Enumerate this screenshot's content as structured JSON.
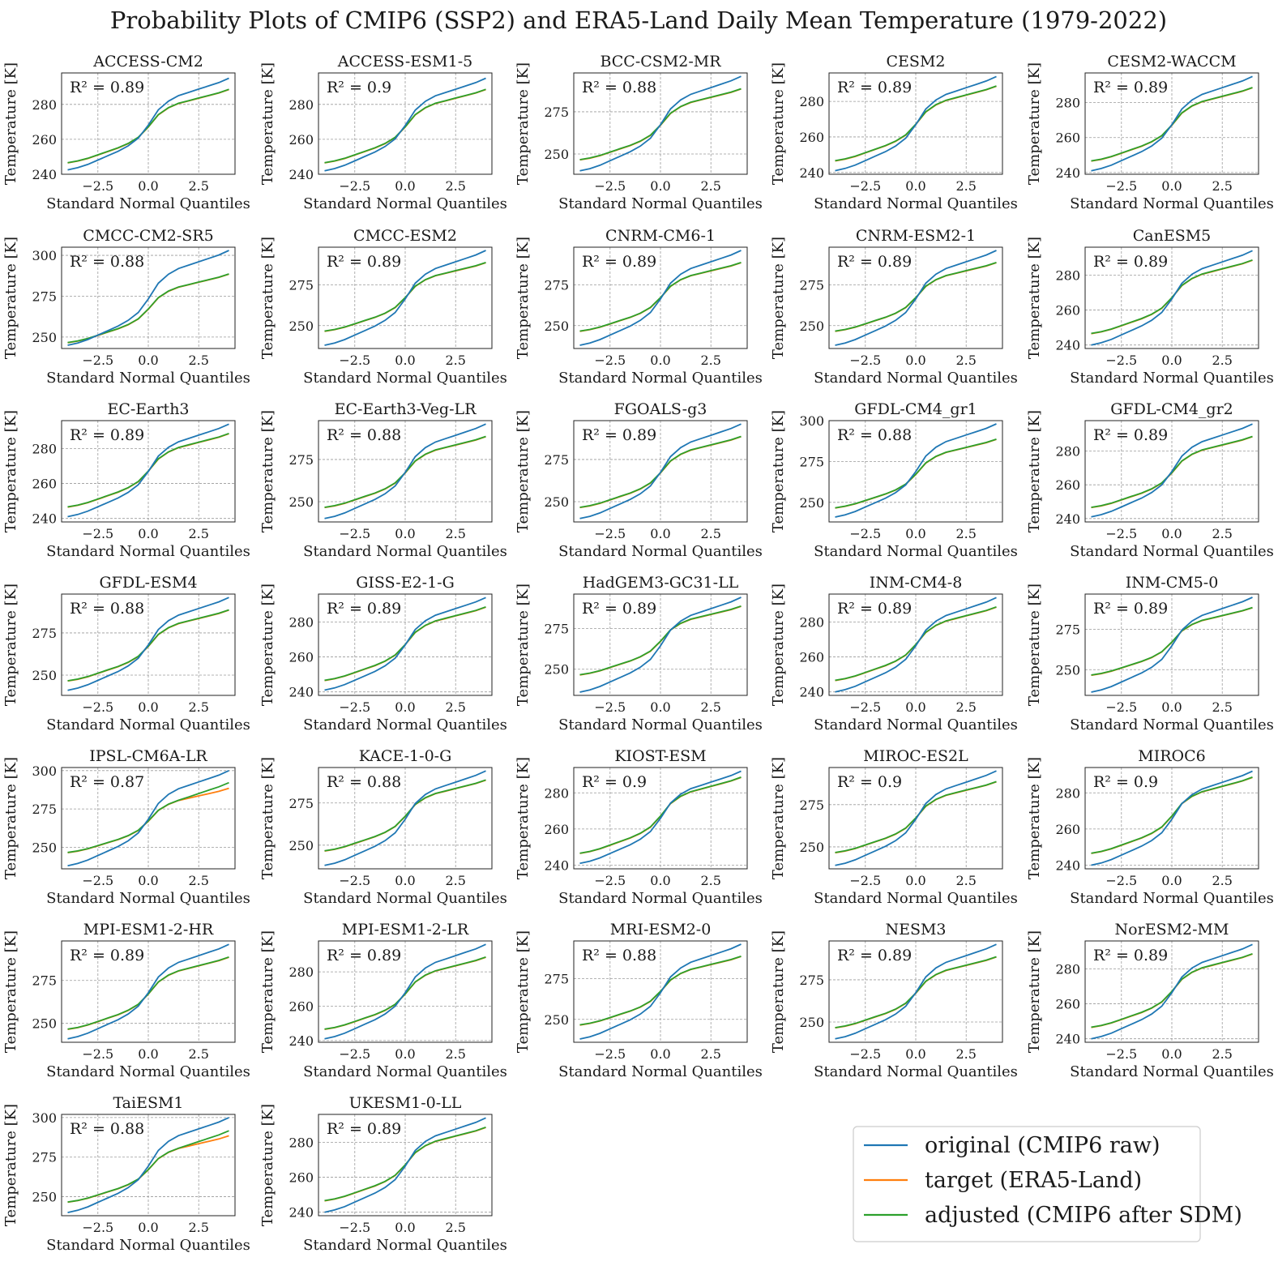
{
  "title": "Probability Plots of CMIP6 (SSP2) and ERA5-Land Daily Mean Temperature (1979-2022)",
  "colors": {
    "original": "#1f77b4",
    "target": "#ff7f0e",
    "adjusted": "#2ca02c",
    "grid": "#9a9a9a"
  },
  "legend": {
    "items": [
      {
        "key": "original",
        "label": "original (CMIP6 raw)"
      },
      {
        "key": "target",
        "label": "target (ERA5-Land)"
      },
      {
        "key": "adjusted",
        "label": "adjusted (CMIP6 after SDM)"
      }
    ]
  },
  "chart_data": {
    "type": "line",
    "xlabel": "Standard Normal Quantiles",
    "ylabel": "Temperature [K]",
    "xlim": [
      -4.3,
      4.3
    ],
    "xticks": [
      -2.5,
      0.0,
      2.5
    ],
    "xtick_labels": [
      "−2.5",
      "0.0",
      "2.5"
    ],
    "quantiles": [
      -4.0,
      -3.5,
      -3.0,
      -2.5,
      -2.0,
      -1.5,
      -1.0,
      -0.5,
      0.0,
      0.5,
      1.0,
      1.5,
      2.0,
      2.5,
      3.0,
      3.5,
      4.0
    ],
    "target_series": [
      246.5,
      247.5,
      249.0,
      251.0,
      253.0,
      255.0,
      257.5,
      261.0,
      267.0,
      274.0,
      278.0,
      280.5,
      282.0,
      283.5,
      285.0,
      286.5,
      288.5
    ],
    "r2_prefix": "R² = ",
    "panels": [
      {
        "name": "ACCESS-CM2",
        "r2": "0.89",
        "ylim": [
          240,
          298
        ],
        "yticks": [
          240,
          260,
          280
        ],
        "tmin": 242.5,
        "tmax": 295.0
      },
      {
        "name": "ACCESS-ESM1-5",
        "r2": "0.9",
        "ylim": [
          240,
          298
        ],
        "yticks": [
          240,
          260,
          280
        ],
        "tmin": 242.0,
        "tmax": 295.0
      },
      {
        "name": "BCC-CSM2-MR",
        "r2": "0.88",
        "ylim": [
          238,
          298
        ],
        "yticks": [
          250,
          275
        ],
        "tmin": 240.0,
        "tmax": 296.0
      },
      {
        "name": "CESM2",
        "r2": "0.89",
        "ylim": [
          239,
          296
        ],
        "yticks": [
          240,
          260,
          280
        ],
        "tmin": 241.0,
        "tmax": 294.0
      },
      {
        "name": "CESM2-WACCM",
        "r2": "0.89",
        "ylim": [
          239,
          297
        ],
        "yticks": [
          240,
          260,
          280
        ],
        "tmin": 241.0,
        "tmax": 295.0
      },
      {
        "name": "CMCC-CM2-SR5",
        "r2": "0.88",
        "ylim": [
          243,
          305
        ],
        "yticks": [
          250,
          275,
          300
        ],
        "tmin": 245.0,
        "tmax": 303.0
      },
      {
        "name": "CMCC-ESM2",
        "r2": "0.89",
        "ylim": [
          236,
          298
        ],
        "yticks": [
          250,
          275
        ],
        "tmin": 238.0,
        "tmax": 296.0
      },
      {
        "name": "CNRM-CM6-1",
        "r2": "0.89",
        "ylim": [
          236,
          298
        ],
        "yticks": [
          250,
          275
        ],
        "tmin": 238.0,
        "tmax": 296.0
      },
      {
        "name": "CNRM-ESM2-1",
        "r2": "0.89",
        "ylim": [
          236,
          298
        ],
        "yticks": [
          250,
          275
        ],
        "tmin": 238.0,
        "tmax": 296.0
      },
      {
        "name": "CanESM5",
        "r2": "0.89",
        "ylim": [
          238,
          296
        ],
        "yticks": [
          240,
          260,
          280
        ],
        "tmin": 240.0,
        "tmax": 294.0
      },
      {
        "name": "EC-Earth3",
        "r2": "0.89",
        "ylim": [
          238,
          296
        ],
        "yticks": [
          240,
          260,
          280
        ],
        "tmin": 241.0,
        "tmax": 294.0
      },
      {
        "name": "EC-Earth3-Veg-LR",
        "r2": "0.88",
        "ylim": [
          238,
          298
        ],
        "yticks": [
          250,
          275
        ],
        "tmin": 240.0,
        "tmax": 296.0
      },
      {
        "name": "FGOALS-g3",
        "r2": "0.89",
        "ylim": [
          238,
          298
        ],
        "yticks": [
          250,
          275
        ],
        "tmin": 240.0,
        "tmax": 296.0
      },
      {
        "name": "GFDL-CM4_gr1",
        "r2": "0.88",
        "ylim": [
          238,
          300
        ],
        "yticks": [
          250,
          275,
          300
        ],
        "tmin": 241.0,
        "tmax": 298.0
      },
      {
        "name": "GFDL-CM4_gr2",
        "r2": "0.89",
        "ylim": [
          238,
          298
        ],
        "yticks": [
          240,
          260,
          280
        ],
        "tmin": 241.0,
        "tmax": 296.0
      },
      {
        "name": "GFDL-ESM4",
        "r2": "0.88",
        "ylim": [
          238,
          298
        ],
        "yticks": [
          250,
          275
        ],
        "tmin": 241.0,
        "tmax": 296.0
      },
      {
        "name": "GISS-E2-1-G",
        "r2": "0.89",
        "ylim": [
          238,
          296
        ],
        "yticks": [
          240,
          260,
          280
        ],
        "tmin": 241.0,
        "tmax": 294.0
      },
      {
        "name": "HadGEM3-GC31-LL",
        "r2": "0.89",
        "ylim": [
          234,
          296
        ],
        "yticks": [
          250,
          275
        ],
        "tmin": 236.0,
        "tmax": 294.0
      },
      {
        "name": "INM-CM4-8",
        "r2": "0.89",
        "ylim": [
          238,
          296
        ],
        "yticks": [
          240,
          260,
          280
        ],
        "tmin": 240.0,
        "tmax": 294.0
      },
      {
        "name": "INM-CM5-0",
        "r2": "0.89",
        "ylim": [
          234,
          297
        ],
        "yticks": [
          250,
          275
        ],
        "tmin": 236.0,
        "tmax": 295.0
      },
      {
        "name": "IPSL-CM6A-LR",
        "r2": "0.87",
        "ylim": [
          236,
          302
        ],
        "yticks": [
          250,
          275,
          300
        ],
        "tmin": 238.0,
        "tmax": 300.0,
        "adj_end_offset": 3.5
      },
      {
        "name": "KACE-1-0-G",
        "r2": "0.88",
        "ylim": [
          236,
          296
        ],
        "yticks": [
          250,
          275
        ],
        "tmin": 238.0,
        "tmax": 294.0
      },
      {
        "name": "KIOST-ESM",
        "r2": "0.9",
        "ylim": [
          238,
          294
        ],
        "yticks": [
          240,
          260,
          280
        ],
        "tmin": 241.0,
        "tmax": 292.0
      },
      {
        "name": "MIROC-ES2L",
        "r2": "0.9",
        "ylim": [
          237,
          297
        ],
        "yticks": [
          250,
          275
        ],
        "tmin": 239.0,
        "tmax": 295.0
      },
      {
        "name": "MIROC6",
        "r2": "0.9",
        "ylim": [
          238,
          294
        ],
        "yticks": [
          240,
          260,
          280
        ],
        "tmin": 240.0,
        "tmax": 292.0
      },
      {
        "name": "MPI-ESM1-2-HR",
        "r2": "0.89",
        "ylim": [
          239,
          298
        ],
        "yticks": [
          250,
          275
        ],
        "tmin": 241.0,
        "tmax": 296.0
      },
      {
        "name": "MPI-ESM1-2-LR",
        "r2": "0.89",
        "ylim": [
          239,
          298
        ],
        "yticks": [
          240,
          260,
          280
        ],
        "tmin": 241.0,
        "tmax": 296.0
      },
      {
        "name": "MRI-ESM2-0",
        "r2": "0.88",
        "ylim": [
          236,
          298
        ],
        "yticks": [
          250,
          275
        ],
        "tmin": 238.0,
        "tmax": 296.0
      },
      {
        "name": "NESM3",
        "r2": "0.89",
        "ylim": [
          238,
          298
        ],
        "yticks": [
          250,
          275
        ],
        "tmin": 240.0,
        "tmax": 296.0
      },
      {
        "name": "NorESM2-MM",
        "r2": "0.89",
        "ylim": [
          238,
          296
        ],
        "yticks": [
          240,
          260,
          280
        ],
        "tmin": 240.0,
        "tmax": 294.0
      },
      {
        "name": "TaiESM1",
        "r2": "0.88",
        "ylim": [
          238,
          302
        ],
        "yticks": [
          250,
          275,
          300
        ],
        "tmin": 240.0,
        "tmax": 300.0,
        "adj_end_offset": 3.0
      },
      {
        "name": "UKESM1-0-LL",
        "r2": "0.89",
        "ylim": [
          238,
          296
        ],
        "yticks": [
          240,
          260,
          280
        ],
        "tmin": 240.0,
        "tmax": 294.0
      }
    ]
  }
}
